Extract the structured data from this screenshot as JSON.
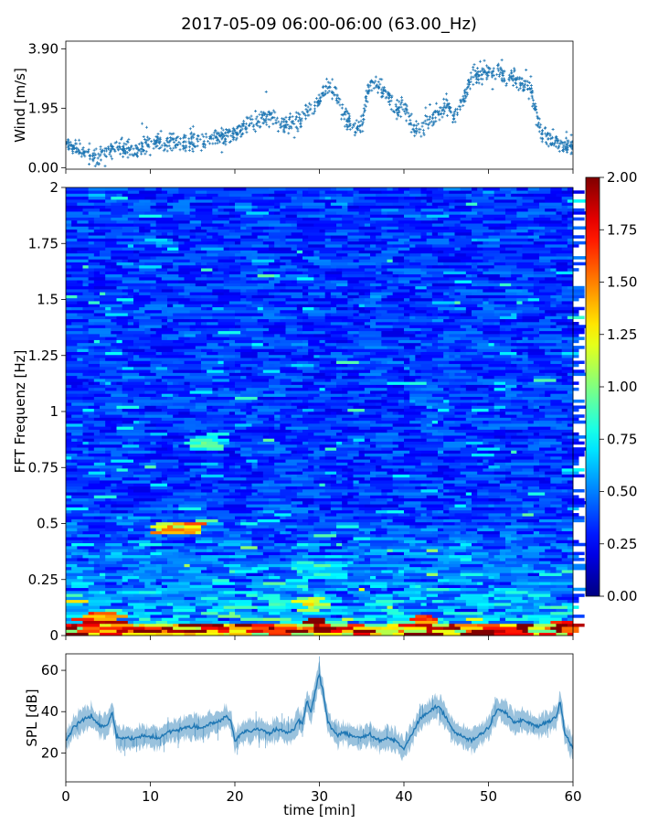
{
  "figure": {
    "title": "2017-05-09 06:00-06:00 (63.00_Hz)"
  },
  "chart_data": [
    {
      "type": "scatter",
      "panel": "wind",
      "ylabel": "Wind [m/s]",
      "xlabel": "",
      "xlim": [
        0,
        60
      ],
      "ylim": [
        -0.05,
        4.15
      ],
      "yticks": [
        0.0,
        1.95,
        3.9
      ],
      "ytick_labels": [
        "0.00",
        "1.95",
        "3.90"
      ],
      "xticks": [
        0,
        10,
        20,
        30,
        40,
        50,
        60
      ],
      "marker_color": "#1f77b4",
      "trend": [
        [
          0,
          0.8
        ],
        [
          2,
          0.5
        ],
        [
          3,
          0.35
        ],
        [
          5,
          0.5
        ],
        [
          6,
          0.7
        ],
        [
          8,
          0.55
        ],
        [
          9,
          0.6
        ],
        [
          10,
          0.9
        ],
        [
          12,
          0.85
        ],
        [
          14,
          0.8
        ],
        [
          16,
          0.85
        ],
        [
          18,
          1.0
        ],
        [
          19,
          1.05
        ],
        [
          20,
          1.1
        ],
        [
          21,
          1.3
        ],
        [
          22,
          1.5
        ],
        [
          24,
          1.7
        ],
        [
          26,
          1.4
        ],
        [
          28,
          1.6
        ],
        [
          30,
          2.2
        ],
        [
          31,
          2.6
        ],
        [
          32,
          2.4
        ],
        [
          33,
          1.6
        ],
        [
          34,
          1.3
        ],
        [
          35,
          1.4
        ],
        [
          36,
          2.8
        ],
        [
          37,
          2.7
        ],
        [
          38,
          2.4
        ],
        [
          39,
          1.9
        ],
        [
          40,
          2.1
        ],
        [
          41,
          1.3
        ],
        [
          42,
          1.2
        ],
        [
          43,
          1.6
        ],
        [
          44,
          1.8
        ],
        [
          45,
          2.2
        ],
        [
          46,
          1.7
        ],
        [
          47,
          2.2
        ],
        [
          48,
          3.0
        ],
        [
          50,
          3.1
        ],
        [
          51,
          3.3
        ],
        [
          52,
          2.9
        ],
        [
          53,
          3.0
        ],
        [
          54,
          2.8
        ],
        [
          55,
          2.6
        ],
        [
          56,
          1.3
        ],
        [
          57,
          1.0
        ],
        [
          58,
          0.8
        ],
        [
          59,
          0.7
        ],
        [
          60,
          0.7
        ]
      ]
    },
    {
      "type": "heatmap",
      "panel": "spectrogram",
      "ylabel": "FFT Frequenz [Hz]",
      "xlabel": "",
      "xlim": [
        0,
        60
      ],
      "ylim": [
        0,
        2
      ],
      "yticks": [
        0,
        0.25,
        0.5,
        0.75,
        1,
        1.25,
        1.5,
        1.75,
        2
      ],
      "ytick_labels": [
        "0",
        "0.25",
        "0.5",
        "0.75",
        "1",
        "1.25",
        "1.5",
        "1.75",
        "2"
      ],
      "xticks": [
        0,
        10,
        20,
        30,
        40,
        50,
        60
      ],
      "colormap": "jet",
      "color_range": [
        0.0,
        2.0
      ],
      "colorbar_ticks": [
        0.0,
        0.25,
        0.5,
        0.75,
        1.0,
        1.25,
        1.5,
        1.75,
        2.0
      ],
      "colorbar_tick_labels": [
        "0.00",
        "0.25",
        "0.50",
        "0.75",
        "1.00",
        "1.25",
        "1.50",
        "1.75",
        "2.00"
      ],
      "background_level": 0.35,
      "low_frequency_band": {
        "freq_max": 0.05,
        "level": 1.8
      },
      "features": [
        {
          "x_start": 10.5,
          "x_end": 16,
          "freq": 0.48,
          "level": 1.5
        },
        {
          "x_start": 15,
          "x_end": 19,
          "freq": 0.86,
          "level": 0.9
        },
        {
          "x_start": 27,
          "x_end": 33,
          "freq": 0.3,
          "level": 0.8
        },
        {
          "x_start": 28,
          "x_end": 31,
          "freq": 0.15,
          "level": 1.3
        },
        {
          "x_start": 2,
          "x_end": 6,
          "freq": 0.08,
          "level": 1.9
        },
        {
          "x_start": 29,
          "x_end": 31.5,
          "freq": 0.05,
          "level": 2.0
        },
        {
          "x_start": 41,
          "x_end": 44,
          "freq": 0.06,
          "level": 1.8
        },
        {
          "x_start": 58,
          "x_end": 60,
          "freq": 0.04,
          "level": 1.9
        }
      ]
    },
    {
      "type": "line",
      "panel": "spl",
      "ylabel": "SPL [dB]",
      "xlabel": "time [min]",
      "xlim": [
        0,
        60
      ],
      "ylim": [
        6,
        68
      ],
      "yticks": [
        20,
        40,
        60
      ],
      "ytick_labels": [
        "20",
        "40",
        "60"
      ],
      "xticks": [
        0,
        10,
        20,
        30,
        40,
        50,
        60
      ],
      "xtick_labels": [
        "0",
        "10",
        "20",
        "30",
        "40",
        "50",
        "60"
      ],
      "line_color": "#1f77b4",
      "x": [
        0,
        1,
        2,
        3,
        4,
        5,
        5.5,
        6,
        7,
        8,
        9,
        10,
        11,
        12,
        13,
        14,
        15,
        16,
        17,
        18,
        19,
        19.5,
        20,
        21,
        22,
        23,
        24,
        25,
        26,
        27,
        27.5,
        28,
        28.5,
        29,
        29.5,
        30,
        30.5,
        31,
        32,
        33,
        34,
        35,
        36,
        37,
        38,
        39,
        40,
        41,
        42,
        43,
        44,
        45,
        46,
        47,
        48,
        49,
        50,
        51,
        52,
        53,
        54,
        55,
        56,
        57,
        58,
        58.5,
        59,
        60
      ],
      "y": [
        26,
        33,
        36,
        38,
        33,
        34,
        40,
        28,
        27,
        27,
        28,
        28,
        27,
        30,
        31,
        32,
        33,
        32,
        34,
        35,
        38,
        36,
        26,
        30,
        31,
        32,
        29,
        32,
        30,
        31,
        36,
        34,
        45,
        40,
        50,
        58,
        48,
        35,
        29,
        30,
        28,
        27,
        29,
        26,
        27,
        26,
        22,
        30,
        37,
        40,
        43,
        37,
        30,
        28,
        26,
        29,
        32,
        41,
        40,
        35,
        36,
        34,
        33,
        35,
        37,
        45,
        30,
        22
      ]
    }
  ]
}
